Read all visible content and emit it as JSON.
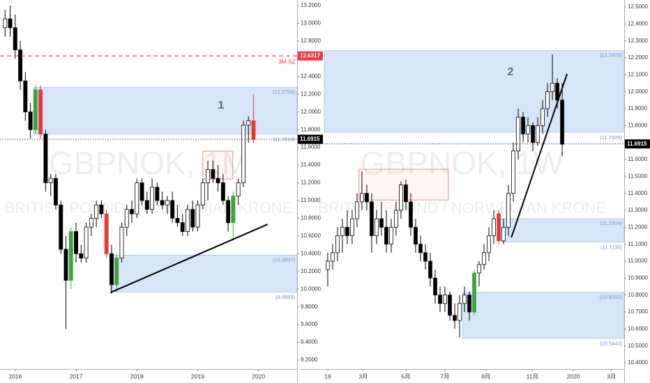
{
  "chart_data": [
    {
      "type": "candlestick",
      "watermark": {
        "title": "GBPNOK, 1M",
        "subtitle": "BRITISH POUND / NORWEGIAN KRONE"
      },
      "annotation": "1",
      "xlim": [
        -1,
        57.6
      ],
      "ylim": [
        9.098,
        13.263
      ],
      "xticks": [
        {
          "value": 2,
          "label": "2016"
        },
        {
          "value": 14,
          "label": "2017"
        },
        {
          "value": 26,
          "label": "2018"
        },
        {
          "value": 38,
          "label": "2019"
        },
        {
          "value": 50,
          "label": "2020"
        }
      ],
      "yticks": [
        {
          "value": 9.2,
          "label": "9.2000"
        },
        {
          "value": 9.4,
          "label": "9.4000"
        },
        {
          "value": 9.6,
          "label": "9.6000"
        },
        {
          "value": 9.8,
          "label": "9.8000"
        },
        {
          "value": 10.0,
          "label": "10.0000"
        },
        {
          "value": 10.2,
          "label": "10.2000"
        },
        {
          "value": 10.4,
          "label": "10.4000"
        },
        {
          "value": 10.6,
          "label": "10.6000"
        },
        {
          "value": 10.8,
          "label": "10.8000"
        },
        {
          "value": 11.0,
          "label": "11.0000"
        },
        {
          "value": 11.2,
          "label": "11.2000"
        },
        {
          "value": 11.4,
          "label": "11.4000"
        },
        {
          "value": 11.6,
          "label": "11.6000"
        },
        {
          "value": 11.8,
          "label": "11.8000"
        },
        {
          "value": 12.0,
          "label": "12.0000"
        },
        {
          "value": 12.2,
          "label": "12.2000"
        },
        {
          "value": 12.4,
          "label": "12.4000"
        },
        {
          "value": 12.6,
          "label": "12.6000"
        },
        {
          "value": 12.8,
          "label": "12.8000"
        },
        {
          "value": 13.0,
          "label": "13.0000"
        },
        {
          "value": 13.2,
          "label": "13.2000"
        }
      ],
      "open": [
        12.95,
        13.05,
        12.95,
        12.7,
        12.35,
        12.0,
        11.8,
        12.25,
        11.75,
        11.2,
        11.25,
        10.95,
        10.45,
        10.1,
        10.65,
        10.4,
        10.35,
        10.7,
        10.8,
        10.95,
        10.85,
        10.4,
        10.05,
        10.35,
        10.7,
        10.9,
        10.85,
        11.2,
        11.0,
        10.9,
        11.15,
        11.0,
        10.95,
        11.0,
        10.8,
        10.75,
        10.65,
        10.9,
        10.7,
        10.95,
        11.2,
        11.35,
        11.25,
        11.2,
        11.0,
        10.75,
        11.05,
        11.2,
        11.85,
        11.9
      ],
      "high": [
        13.15,
        13.2,
        13.1,
        12.8,
        12.45,
        12.1,
        12.3,
        12.3,
        11.8,
        11.3,
        11.3,
        11.0,
        10.6,
        10.7,
        10.75,
        10.5,
        10.75,
        10.85,
        11.0,
        11.0,
        10.9,
        10.5,
        10.4,
        10.75,
        10.95,
        11.0,
        11.25,
        11.25,
        11.1,
        11.25,
        11.2,
        11.1,
        11.05,
        11.1,
        10.95,
        10.85,
        10.95,
        11.0,
        11.0,
        11.25,
        11.45,
        11.45,
        11.4,
        11.3,
        11.05,
        11.1,
        11.25,
        11.9,
        11.95,
        12.2
      ],
      "low": [
        12.85,
        12.85,
        12.6,
        12.25,
        11.9,
        11.7,
        11.75,
        11.7,
        11.1,
        11.05,
        10.9,
        10.4,
        9.55,
        10.0,
        10.3,
        10.3,
        10.3,
        10.6,
        10.7,
        10.8,
        10.35,
        9.95,
        9.97,
        10.3,
        10.6,
        10.75,
        10.8,
        10.95,
        10.85,
        10.85,
        10.95,
        10.9,
        10.85,
        10.75,
        10.7,
        10.6,
        10.6,
        10.65,
        10.65,
        10.9,
        11.0,
        11.2,
        11.1,
        10.95,
        10.65,
        10.55,
        10.95,
        11.15,
        11.65,
        11.65
      ],
      "close": [
        13.05,
        12.95,
        12.7,
        12.35,
        12.0,
        11.8,
        12.25,
        11.75,
        11.2,
        11.25,
        10.95,
        10.45,
        10.1,
        10.65,
        10.4,
        10.35,
        10.7,
        10.8,
        10.95,
        10.85,
        10.4,
        10.05,
        10.35,
        10.7,
        10.9,
        10.85,
        11.2,
        11.0,
        10.9,
        11.15,
        11.0,
        10.95,
        11.0,
        10.8,
        10.75,
        10.65,
        10.9,
        10.7,
        10.95,
        11.2,
        11.35,
        11.25,
        11.2,
        11.0,
        10.75,
        11.05,
        11.2,
        11.85,
        11.9,
        11.69
      ],
      "colors": [
        "#fff",
        "#000",
        "#000",
        "#000",
        "#000",
        "#000",
        "#3aa53a",
        "#e53935",
        "#000",
        "#fff",
        "#000",
        "#000",
        "#000",
        "#3aa53a",
        "#000",
        "#000",
        "#fff",
        "#fff",
        "#fff",
        "#000",
        "#e53935",
        "#000",
        "#3aa53a",
        "#fff",
        "#fff",
        "#000",
        "#fff",
        "#000",
        "#000",
        "#fff",
        "#000",
        "#000",
        "#fff",
        "#000",
        "#000",
        "#000",
        "#fff",
        "#000",
        "#fff",
        "#fff",
        "#fff",
        "#000",
        "#000",
        "#000",
        "#000",
        "#3aa53a",
        "#fff",
        "#fff",
        "#fff",
        "#e53935"
      ],
      "zones": [
        {
          "x_start": 5.6,
          "range": [
            11.7513,
            12.2759
          ],
          "labels": [
            "(11.7513)",
            "(12.2759)"
          ],
          "color": "#c9dcf7"
        },
        {
          "x_start": 20.8,
          "range": [
            9.9689,
            10.3837
          ],
          "labels": [
            "(9.9689)",
            "(10.3837)"
          ],
          "color": "#c9dcf7"
        }
      ],
      "boxes": [
        {
          "x": [
            39.0,
            44.9
          ],
          "range": [
            11.243,
            11.557
          ],
          "color": "#f28b82"
        }
      ],
      "trendline": {
        "x": [
          20.8,
          51.8
        ],
        "y": [
          9.962,
          10.732
        ]
      },
      "level": {
        "value": 12.6317,
        "label": "3M SZ",
        "color": "#f23645"
      },
      "current_price": 11.6915
    },
    {
      "type": "candlestick",
      "watermark": {
        "title": "GBPNOK, 1W",
        "subtitle": "BRITISH POUND / NORWEGIAN KRONE"
      },
      "annotation": "2",
      "xlim": [
        -5.7,
        60.7
      ],
      "ylim": [
        10.363,
        12.541
      ],
      "xticks": [
        {
          "value": 0,
          "label": "19"
        },
        {
          "value": 7.3,
          "label": "3月"
        },
        {
          "value": 16,
          "label": "5月"
        },
        {
          "value": 24,
          "label": "7月"
        },
        {
          "value": 32.4,
          "label": "9月"
        },
        {
          "value": 41.9,
          "label": "11月"
        },
        {
          "value": 50.3,
          "label": "2020"
        },
        {
          "value": 58.1,
          "label": "3月"
        }
      ],
      "yticks": [
        {
          "value": 10.4,
          "label": "10.4000"
        },
        {
          "value": 10.5,
          "label": "10.5000"
        },
        {
          "value": 10.6,
          "label": "10.6000"
        },
        {
          "value": 10.7,
          "label": "10.7000"
        },
        {
          "value": 10.8,
          "label": "10.8000"
        },
        {
          "value": 10.9,
          "label": "10.9000"
        },
        {
          "value": 11.0,
          "label": "11.0000"
        },
        {
          "value": 11.1,
          "label": "11.1000"
        },
        {
          "value": 11.2,
          "label": "11.2000"
        },
        {
          "value": 11.3,
          "label": "11.3000"
        },
        {
          "value": 11.4,
          "label": "11.4000"
        },
        {
          "value": 11.5,
          "label": "11.5000"
        },
        {
          "value": 11.6,
          "label": "11.6000"
        },
        {
          "value": 11.7,
          "label": "11.7000"
        },
        {
          "value": 11.8,
          "label": "11.8000"
        },
        {
          "value": 11.9,
          "label": "11.9000"
        },
        {
          "value": 12.0,
          "label": "12.0000"
        },
        {
          "value": 12.1,
          "label": "12.1000"
        },
        {
          "value": 12.2,
          "label": "12.2000"
        },
        {
          "value": 12.3,
          "label": "12.3000"
        },
        {
          "value": 12.4,
          "label": "12.4000"
        },
        {
          "value": 12.5,
          "label": "12.5000"
        }
      ],
      "open": [
        10.95,
        11.0,
        11.05,
        11.15,
        11.2,
        11.15,
        11.25,
        11.35,
        11.4,
        11.35,
        11.15,
        11.25,
        11.2,
        11.1,
        11.2,
        11.3,
        11.45,
        11.35,
        11.2,
        11.1,
        11.05,
        11.0,
        10.9,
        10.8,
        10.75,
        10.8,
        10.68,
        10.65,
        10.75,
        10.8,
        10.7,
        10.93,
        10.98,
        11.05,
        11.15,
        11.28,
        11.12,
        11.2,
        11.4,
        11.65,
        11.85,
        11.75,
        11.8,
        11.7,
        11.8,
        11.9,
        12.0,
        12.05,
        11.95
      ],
      "high": [
        11.05,
        11.1,
        11.2,
        11.25,
        11.3,
        11.3,
        11.4,
        11.53,
        11.45,
        11.4,
        11.3,
        11.35,
        11.3,
        11.25,
        11.35,
        11.47,
        11.48,
        11.4,
        11.25,
        11.15,
        11.1,
        11.05,
        10.95,
        10.85,
        10.85,
        10.82,
        10.75,
        10.8,
        10.85,
        10.82,
        10.95,
        11.0,
        11.1,
        11.2,
        11.3,
        11.3,
        11.25,
        11.45,
        11.7,
        11.9,
        11.88,
        11.85,
        11.82,
        11.85,
        11.95,
        12.05,
        12.22,
        12.08,
        12.05
      ],
      "low": [
        10.85,
        10.95,
        11.0,
        11.05,
        11.1,
        11.1,
        11.2,
        11.3,
        11.3,
        11.05,
        11.1,
        11.15,
        11.05,
        11.05,
        11.15,
        11.25,
        11.3,
        11.15,
        11.05,
        11.0,
        10.95,
        10.85,
        10.75,
        10.7,
        10.7,
        10.65,
        10.6,
        10.55,
        10.7,
        10.65,
        10.68,
        10.85,
        10.95,
        11.0,
        11.1,
        11.1,
        11.1,
        11.15,
        11.35,
        11.6,
        11.7,
        11.7,
        11.65,
        11.68,
        11.75,
        11.85,
        11.95,
        11.9,
        11.62
      ],
      "close": [
        11.0,
        11.05,
        11.15,
        11.2,
        11.15,
        11.25,
        11.35,
        11.4,
        11.35,
        11.15,
        11.25,
        11.2,
        11.1,
        11.2,
        11.3,
        11.45,
        11.35,
        11.2,
        11.1,
        11.05,
        11.0,
        10.9,
        10.8,
        10.75,
        10.8,
        10.68,
        10.65,
        10.75,
        10.8,
        10.7,
        10.93,
        10.98,
        11.05,
        11.15,
        11.25,
        11.12,
        11.2,
        11.4,
        11.65,
        11.85,
        11.75,
        11.8,
        11.7,
        11.8,
        11.9,
        12.0,
        12.05,
        11.95,
        11.69
      ],
      "colors": [
        "#fff",
        "#fff",
        "#fff",
        "#fff",
        "#000",
        "#fff",
        "#fff",
        "#fff",
        "#000",
        "#000",
        "#fff",
        "#000",
        "#000",
        "#fff",
        "#fff",
        "#fff",
        "#000",
        "#000",
        "#000",
        "#000",
        "#000",
        "#000",
        "#000",
        "#000",
        "#fff",
        "#000",
        "#000",
        "#fff",
        "#fff",
        "#000",
        "#3aa53a",
        "#fff",
        "#fff",
        "#fff",
        "#fff",
        "#e53935",
        "#fff",
        "#fff",
        "#fff",
        "#fff",
        "#000",
        "#fff",
        "#000",
        "#fff",
        "#fff",
        "#fff",
        "#fff",
        "#000",
        "#000"
      ],
      "zones": [
        {
          "x_start": -0.7,
          "range": [
            11.7609,
            12.242
          ],
          "labels": [
            "(11.7609)",
            "(12.2420)"
          ],
          "color": "#c9dcf7"
        },
        {
          "x_start": 35.4,
          "range": [
            11.1136,
            11.2504
          ],
          "labels": [
            "(11.1136)",
            "(11.2504)"
          ],
          "color": "#c9dcf7"
        },
        {
          "x_start": 27.6,
          "range": [
            10.5442,
            10.8152
          ],
          "labels": [
            "(10.5442)",
            "(10.8152)"
          ],
          "color": "#c9dcf7"
        }
      ],
      "boxes": [
        {
          "x": [
            6.4,
            24.7
          ],
          "range": [
            11.361,
            11.542
          ],
          "color": "#f28b82"
        }
      ],
      "trendline": {
        "x": [
          37.6,
          49.0
        ],
        "y": [
          11.14,
          12.105
        ]
      },
      "current_price": 11.6915
    }
  ]
}
